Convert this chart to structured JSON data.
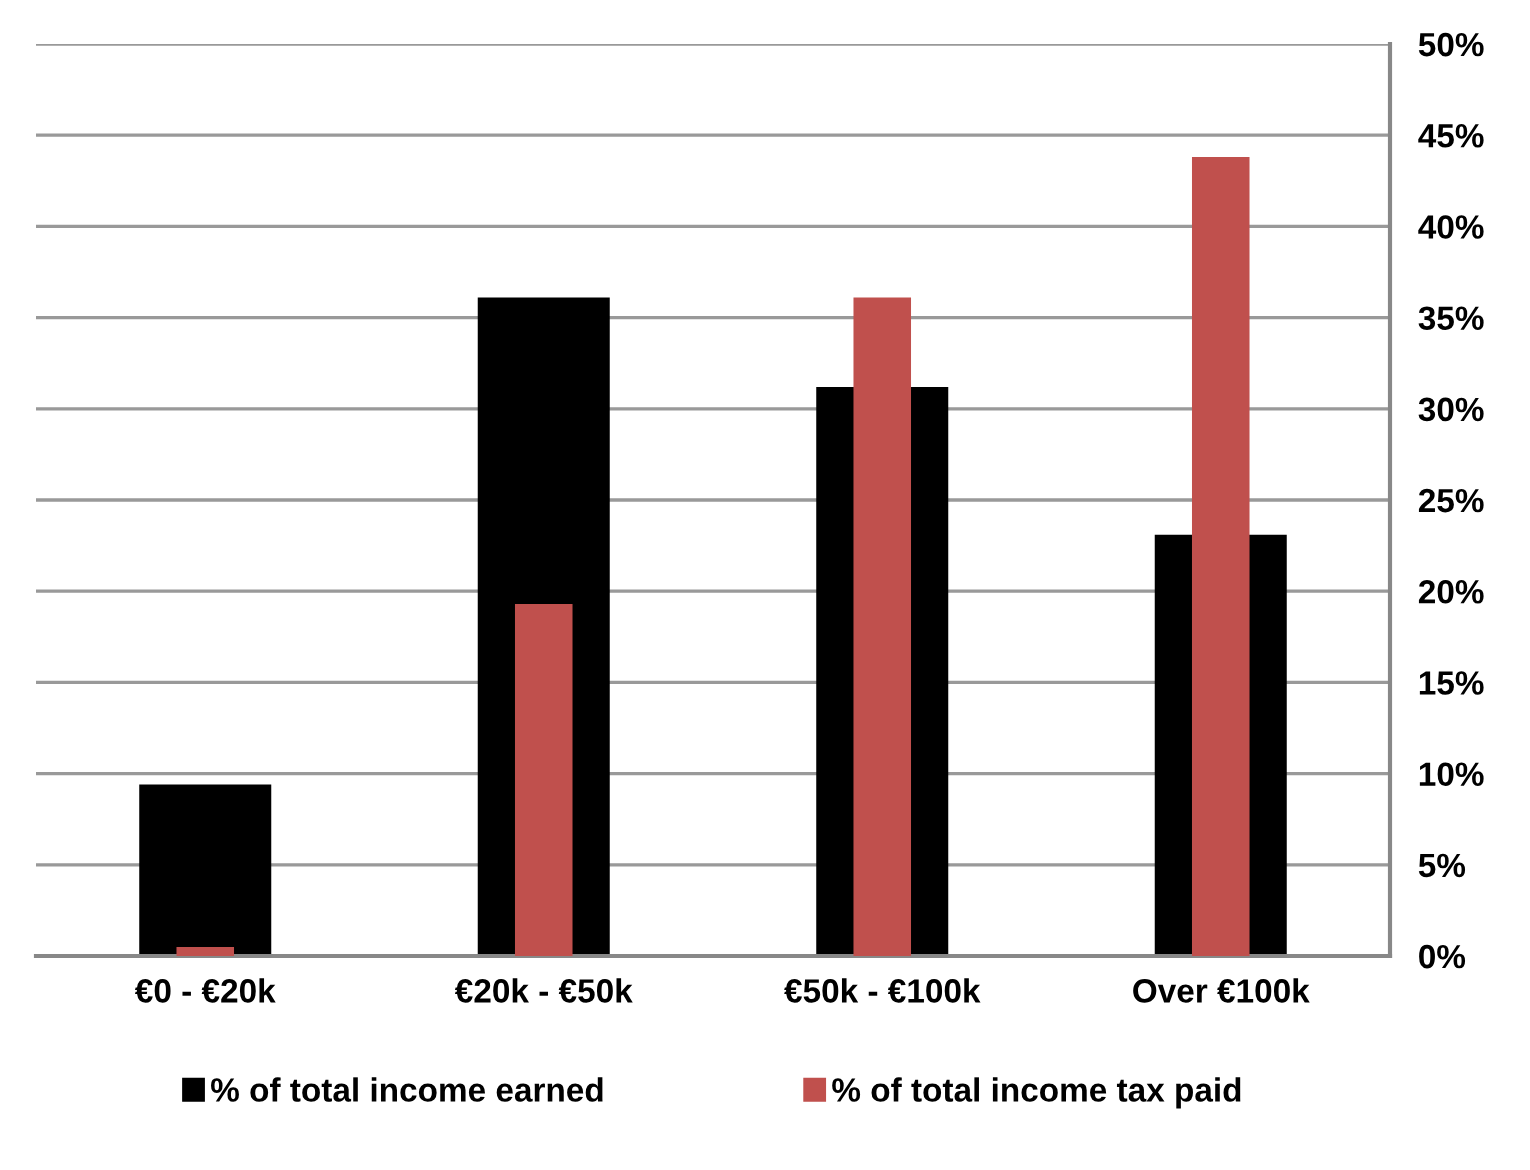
{
  "chart_data": {
    "type": "bar",
    "categories": [
      "€0 - €20k",
      "€20k - €50k",
      "€50k - €100k",
      "Over €100k"
    ],
    "series": [
      {
        "name": "% of total income earned",
        "color": "#000000",
        "values": [
          9.4,
          36.1,
          31.2,
          23.1
        ]
      },
      {
        "name": "% of total income tax paid",
        "color": "#c0504d",
        "values": [
          0.5,
          19.3,
          36.1,
          43.8
        ]
      }
    ],
    "ylim": [
      0,
      50
    ],
    "yticks": [
      {
        "value": 0,
        "label": "0%"
      },
      {
        "value": 5,
        "label": "5%"
      },
      {
        "value": 10,
        "label": "10%"
      },
      {
        "value": 15,
        "label": "15%"
      },
      {
        "value": 20,
        "label": "20%"
      },
      {
        "value": 25,
        "label": "25%"
      },
      {
        "value": 30,
        "label": "30%"
      },
      {
        "value": 35,
        "label": "35%"
      },
      {
        "value": 40,
        "label": "40%"
      },
      {
        "value": 45,
        "label": "45%"
      },
      {
        "value": 50,
        "label": "50%"
      }
    ],
    "grid": "y",
    "legend": "bottom"
  }
}
